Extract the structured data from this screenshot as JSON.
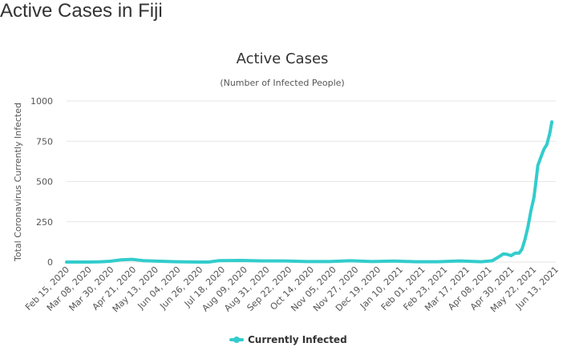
{
  "page": {
    "heading": "Active Cases in Fiji"
  },
  "chart_data": {
    "type": "line",
    "title": "Active Cases",
    "subtitle": "(Number of Infected People)",
    "xlabel": "",
    "ylabel": "Total Coronavirus Currently Infected",
    "ylim": [
      0,
      1000
    ],
    "yticks": [
      0,
      250,
      500,
      750,
      1000
    ],
    "grid": true,
    "legend_position": "bottom-center",
    "x_start": "2020-02-15",
    "x_end": "2021-06-22",
    "x_tick_labels": [
      "Feb 15, 2020",
      "Mar 08, 2020",
      "Mar 30, 2020",
      "Apr 21, 2020",
      "May 13, 2020",
      "Jun 04, 2020",
      "Jun 26, 2020",
      "Jul 18, 2020",
      "Aug 09, 2020",
      "Aug 31, 2020",
      "Sep 22, 2020",
      "Oct 14, 2020",
      "Nov 05, 2020",
      "Nov 27, 2020",
      "Dec 19, 2020",
      "Jan 10, 2021",
      "Feb 01, 2021",
      "Feb 23, 2021",
      "Mar 17, 2021",
      "Apr 08, 2021",
      "Apr 30, 2021",
      "May 22, 2021",
      "Jun 13, 2021"
    ],
    "series": [
      {
        "name": "Currently Infected",
        "color": "#33cccc",
        "points": [
          [
            "2020-02-15",
            0
          ],
          [
            "2020-03-08",
            0
          ],
          [
            "2020-03-19",
            1
          ],
          [
            "2020-03-30",
            5
          ],
          [
            "2020-04-10",
            14
          ],
          [
            "2020-04-21",
            17
          ],
          [
            "2020-05-02",
            9
          ],
          [
            "2020-05-13",
            6
          ],
          [
            "2020-06-04",
            2
          ],
          [
            "2020-06-26",
            0
          ],
          [
            "2020-07-07",
            0
          ],
          [
            "2020-07-18",
            9
          ],
          [
            "2020-08-09",
            10
          ],
          [
            "2020-08-31",
            7
          ],
          [
            "2020-09-22",
            7
          ],
          [
            "2020-10-14",
            3
          ],
          [
            "2020-11-05",
            3
          ],
          [
            "2020-11-27",
            8
          ],
          [
            "2020-12-19",
            3
          ],
          [
            "2021-01-10",
            6
          ],
          [
            "2021-02-01",
            2
          ],
          [
            "2021-02-23",
            2
          ],
          [
            "2021-03-17",
            7
          ],
          [
            "2021-04-08",
            2
          ],
          [
            "2021-04-19",
            8
          ],
          [
            "2021-04-25",
            30
          ],
          [
            "2021-04-30",
            50
          ],
          [
            "2021-05-04",
            48
          ],
          [
            "2021-05-08",
            40
          ],
          [
            "2021-05-12",
            55
          ],
          [
            "2021-05-16",
            55
          ],
          [
            "2021-05-19",
            80
          ],
          [
            "2021-05-22",
            140
          ],
          [
            "2021-05-25",
            220
          ],
          [
            "2021-05-28",
            320
          ],
          [
            "2021-05-31",
            400
          ],
          [
            "2021-06-02",
            500
          ],
          [
            "2021-06-04",
            600
          ],
          [
            "2021-06-07",
            650
          ],
          [
            "2021-06-10",
            700
          ],
          [
            "2021-06-13",
            730
          ],
          [
            "2021-06-16",
            800
          ],
          [
            "2021-06-18",
            870
          ]
        ]
      }
    ]
  }
}
